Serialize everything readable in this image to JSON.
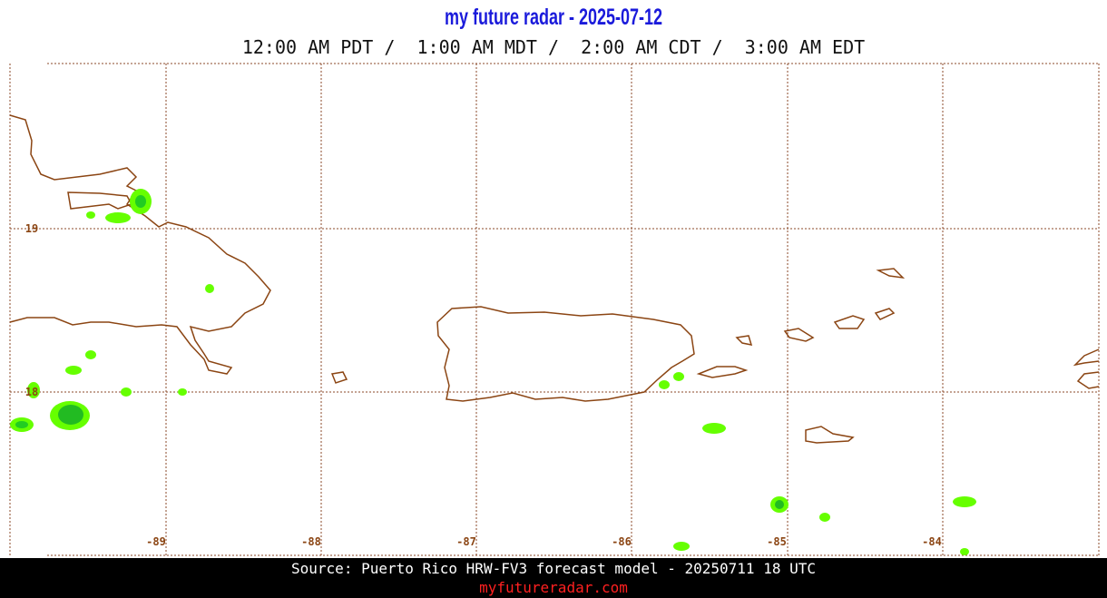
{
  "header": {
    "title": "my future radar - 2025-07-12",
    "subtitle": "12:00 AM PDT /  1:00 AM MDT /  2:00 AM CDT /  3:00 AM EDT"
  },
  "map": {
    "lat_labels": [
      "19",
      "18"
    ],
    "lon_labels": [
      "-89",
      "-88",
      "-87",
      "-86",
      "-85",
      "-84"
    ]
  },
  "footer": {
    "source": "Source: Puerto Rico HRW-FV3 forecast model - 20250711 18 UTC",
    "url": "myfutureradar.com"
  }
}
